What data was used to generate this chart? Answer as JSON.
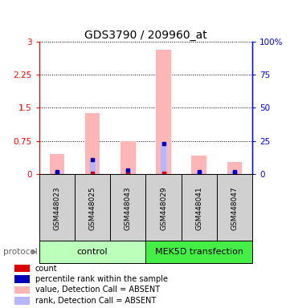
{
  "title": "GDS3790 / 209960_at",
  "samples": [
    "GSM448023",
    "GSM448025",
    "GSM448043",
    "GSM448029",
    "GSM448041",
    "GSM448047"
  ],
  "pink_values": [
    0.45,
    1.38,
    0.75,
    2.82,
    0.42,
    0.28
  ],
  "blue_values": [
    0.07,
    0.35,
    0.11,
    0.72,
    0.06,
    0.07
  ],
  "red_dot_values": [
    0.02,
    0.02,
    0.02,
    0.02,
    0.02,
    0.02
  ],
  "blue_dot_values": [
    0.06,
    0.32,
    0.09,
    0.69,
    0.05,
    0.06
  ],
  "ylim_left": [
    0,
    3
  ],
  "ylim_right": [
    0,
    100
  ],
  "yticks_left": [
    0,
    0.75,
    1.5,
    2.25,
    3
  ],
  "yticks_right": [
    0,
    25,
    50,
    75,
    100
  ],
  "ytick_labels_left": [
    "0",
    "0.75",
    "1.5",
    "2.25",
    "3"
  ],
  "ytick_labels_right": [
    "0",
    "25",
    "50",
    "75",
    "100%"
  ],
  "pink_color": "#ffb6b6",
  "blue_color": "#b6b6ff",
  "red_color": "#dd0000",
  "darkblue_color": "#0000bb",
  "bg_color": "#ffffff",
  "sample_box_color": "#d0d0d0",
  "ctrl_color": "#bbffbb",
  "mek_color": "#44ee44",
  "title_fontsize": 10,
  "tick_fontsize": 7.5,
  "sample_fontsize": 6.5,
  "group_fontsize": 8,
  "legend_fontsize": 7,
  "legend_items": [
    {
      "color": "#dd0000",
      "label": "count"
    },
    {
      "color": "#0000bb",
      "label": "percentile rank within the sample"
    },
    {
      "color": "#ffb6b6",
      "label": "value, Detection Call = ABSENT"
    },
    {
      "color": "#b6b6ff",
      "label": "rank, Detection Call = ABSENT"
    }
  ]
}
